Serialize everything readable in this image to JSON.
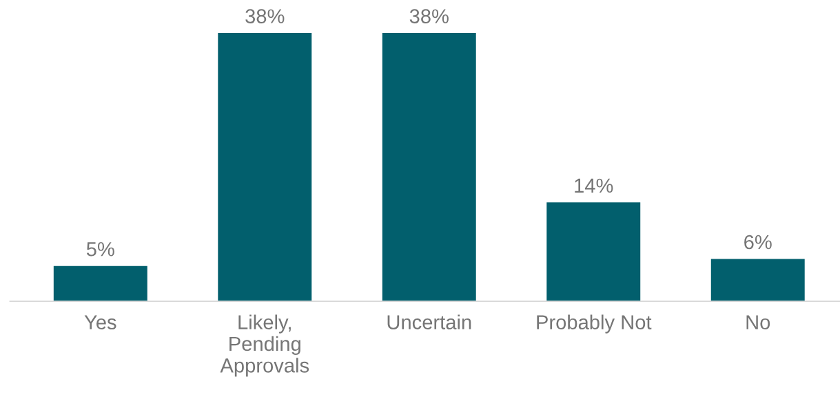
{
  "chart_data": {
    "type": "bar",
    "categories": [
      "Yes",
      "Likely,\nPending\nApprovals",
      "Uncertain",
      "Probably Not",
      "No"
    ],
    "values": [
      5,
      38,
      38,
      14,
      6
    ],
    "value_labels": [
      "5%",
      "38%",
      "38%",
      "14%",
      "6%"
    ],
    "color": "#025f6d",
    "grid": false,
    "legend": false
  }
}
